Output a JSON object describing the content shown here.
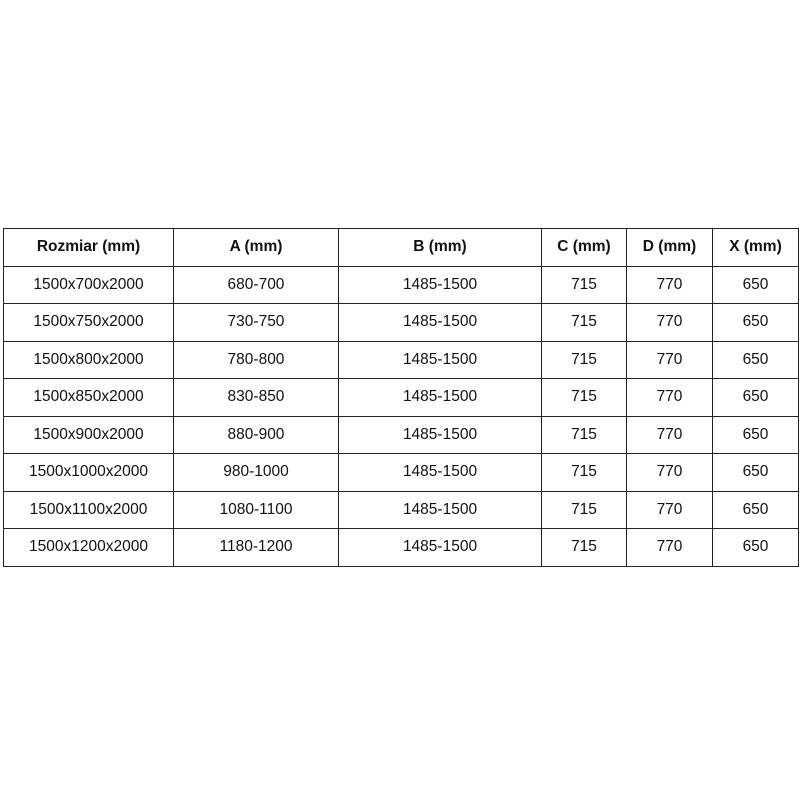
{
  "table": {
    "headers": [
      "Rozmiar (mm)",
      "A (mm)",
      "B (mm)",
      "C (mm)",
      "D (mm)",
      "X (mm)"
    ],
    "rows": [
      [
        "1500x700x2000",
        "680-700",
        "1485-1500",
        "715",
        "770",
        "650"
      ],
      [
        "1500x750x2000",
        "730-750",
        "1485-1500",
        "715",
        "770",
        "650"
      ],
      [
        "1500x800x2000",
        "780-800",
        "1485-1500",
        "715",
        "770",
        "650"
      ],
      [
        "1500x850x2000",
        "830-850",
        "1485-1500",
        "715",
        "770",
        "650"
      ],
      [
        "1500x900x2000",
        "880-900",
        "1485-1500",
        "715",
        "770",
        "650"
      ],
      [
        "1500x1000x2000",
        "980-1000",
        "1485-1500",
        "715",
        "770",
        "650"
      ],
      [
        "1500x1100x2000",
        "1080-1100",
        "1485-1500",
        "715",
        "770",
        "650"
      ],
      [
        "1500x1200x2000",
        "1180-1200",
        "1485-1500",
        "715",
        "770",
        "650"
      ]
    ]
  }
}
